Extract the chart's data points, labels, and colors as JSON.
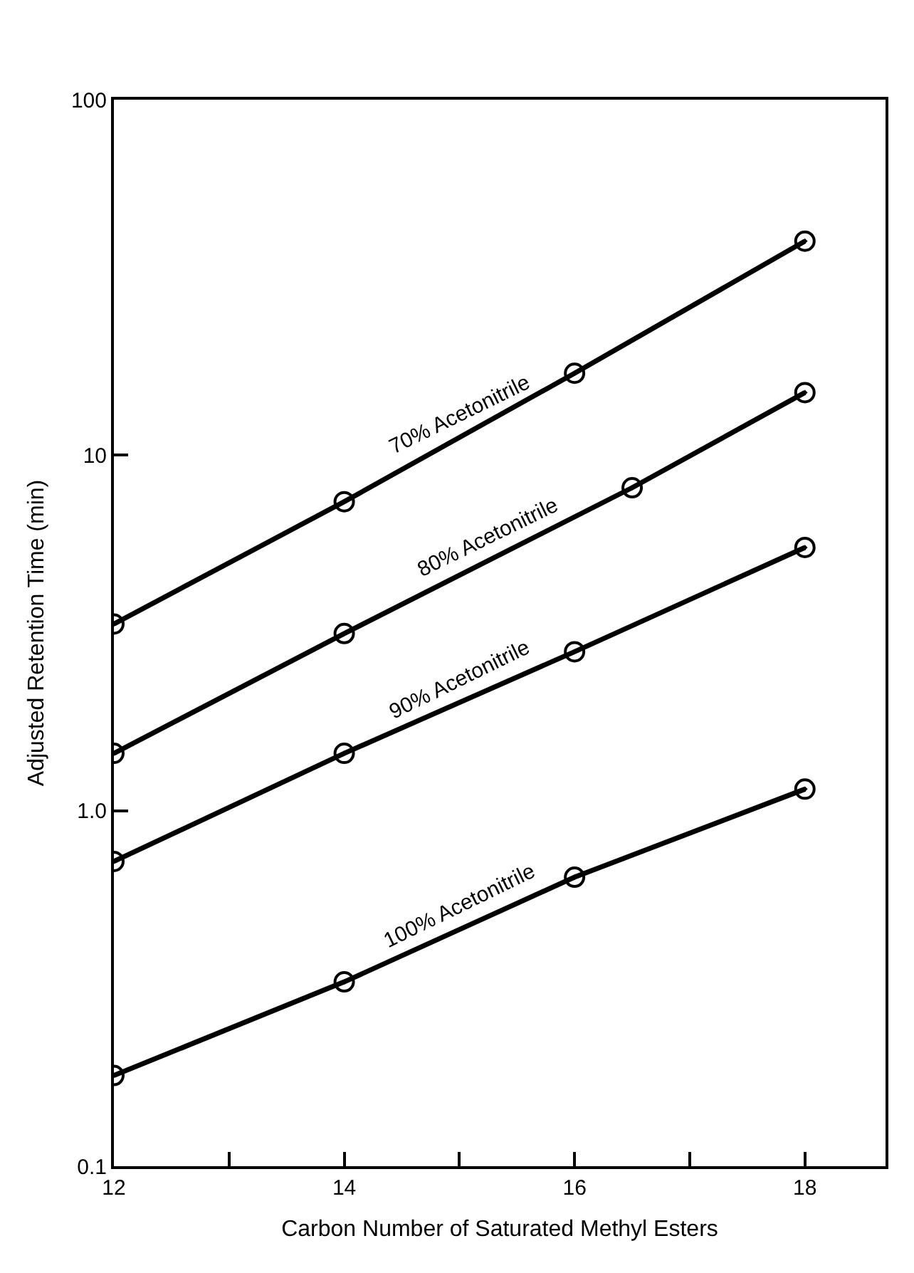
{
  "chart_data": {
    "type": "line",
    "xlabel": "Carbon Number of Saturated Methyl Esters",
    "ylabel": "Adjusted Retention Time (min)",
    "log": "y",
    "xlim": [
      12,
      18.7
    ],
    "ylim": [
      0.1,
      100
    ],
    "xticks": [
      12,
      {
        "value": 13,
        "label": null
      },
      14,
      {
        "value": 15,
        "label": null
      },
      16,
      {
        "value": 17,
        "label": null
      },
      18
    ],
    "yticks": [
      0.1,
      {
        "value": 1,
        "label": "1.0"
      },
      10,
      100
    ],
    "legend": false,
    "marker": "circle",
    "line_style": "solid",
    "series": [
      {
        "name": "70% Acetonitrile",
        "color": "#000000",
        "x": [
          12,
          14,
          16,
          18
        ],
        "values": [
          3.35,
          7.4,
          17,
          40
        ]
      },
      {
        "name": "80% Acetonitrile",
        "color": "#000000",
        "x": [
          12,
          14,
          16.5,
          18
        ],
        "values": [
          1.45,
          3.15,
          8.1,
          15
        ]
      },
      {
        "name": "90% Acetonitrile",
        "color": "#000000",
        "x": [
          12,
          14,
          16,
          18
        ],
        "values": [
          0.72,
          1.45,
          2.8,
          5.5
        ]
      },
      {
        "name": "100% Acetonitrile",
        "color": "#000000",
        "x": [
          12,
          14,
          16,
          18
        ],
        "values": [
          0.18,
          0.33,
          0.65,
          1.15
        ]
      }
    ]
  }
}
